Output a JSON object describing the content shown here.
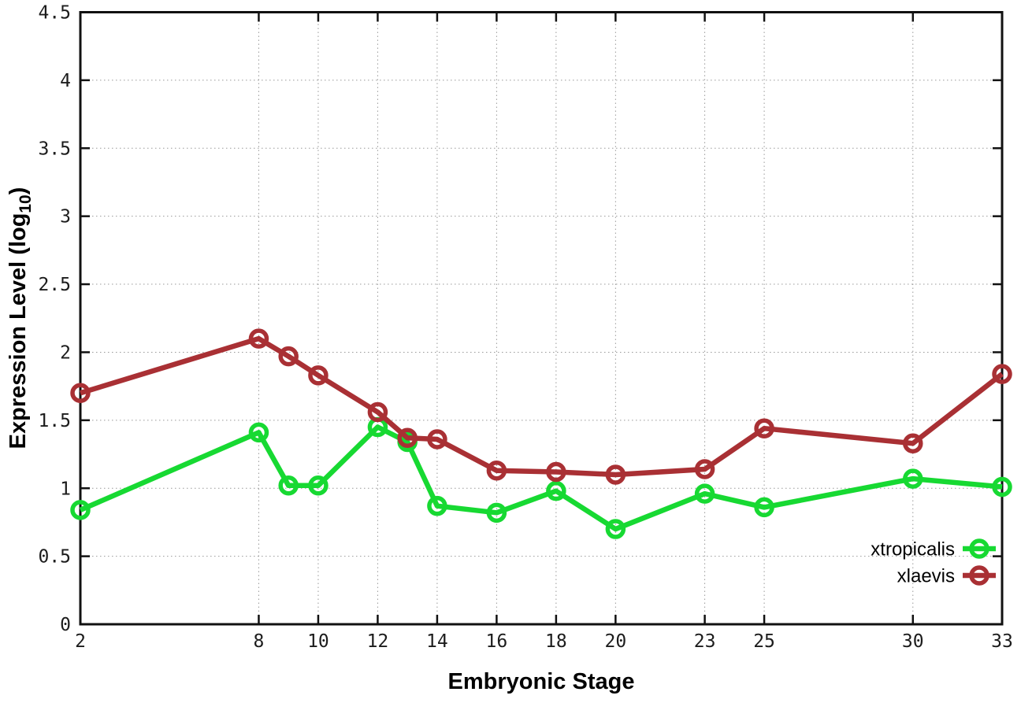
{
  "chart_data": {
    "type": "line",
    "xlabel": "Embryonic Stage",
    "ylabel": {
      "main": "Expression Level (log",
      "sub": "10",
      "suffix": ")"
    },
    "x": [
      2,
      8,
      9,
      10,
      12,
      13,
      14,
      16,
      18,
      20,
      23,
      25,
      30,
      33
    ],
    "series": [
      {
        "name": "xtropicalis",
        "color": "#17d932",
        "values": [
          0.84,
          1.41,
          1.02,
          1.02,
          1.45,
          1.34,
          0.87,
          0.82,
          0.98,
          0.7,
          0.96,
          0.86,
          1.07,
          1.01
        ]
      },
      {
        "name": "xlaevis",
        "color": "#a93034",
        "values": [
          1.7,
          2.1,
          1.97,
          1.83,
          1.56,
          1.37,
          1.36,
          1.13,
          1.12,
          1.1,
          1.14,
          1.44,
          1.33,
          1.84
        ]
      }
    ],
    "xlim": [
      2,
      33
    ],
    "ylim": [
      0,
      4.5
    ],
    "xticks": {
      "values": [
        2,
        8,
        10,
        12,
        14,
        16,
        18,
        20,
        23,
        25,
        30,
        33
      ],
      "labels": [
        "2",
        "8",
        "10",
        "12",
        "14",
        "16",
        "18",
        "20",
        "23",
        "25",
        "30",
        "33"
      ]
    },
    "yticks": {
      "values": [
        0,
        0.5,
        1,
        1.5,
        2,
        2.5,
        3,
        3.5,
        4,
        4.5
      ],
      "labels": [
        "0",
        "0.5",
        "1",
        "1.5",
        "2",
        "2.5",
        "3",
        "3.5",
        "4",
        "4.5"
      ]
    },
    "grid": true,
    "legend_position": "bottom-right",
    "legend": [
      "xtropicalis",
      "xlaevis"
    ]
  },
  "colors": {
    "background": "#ffffff",
    "border": "#111111",
    "grid": "#999999",
    "tick_text": "#1c1c1c"
  }
}
